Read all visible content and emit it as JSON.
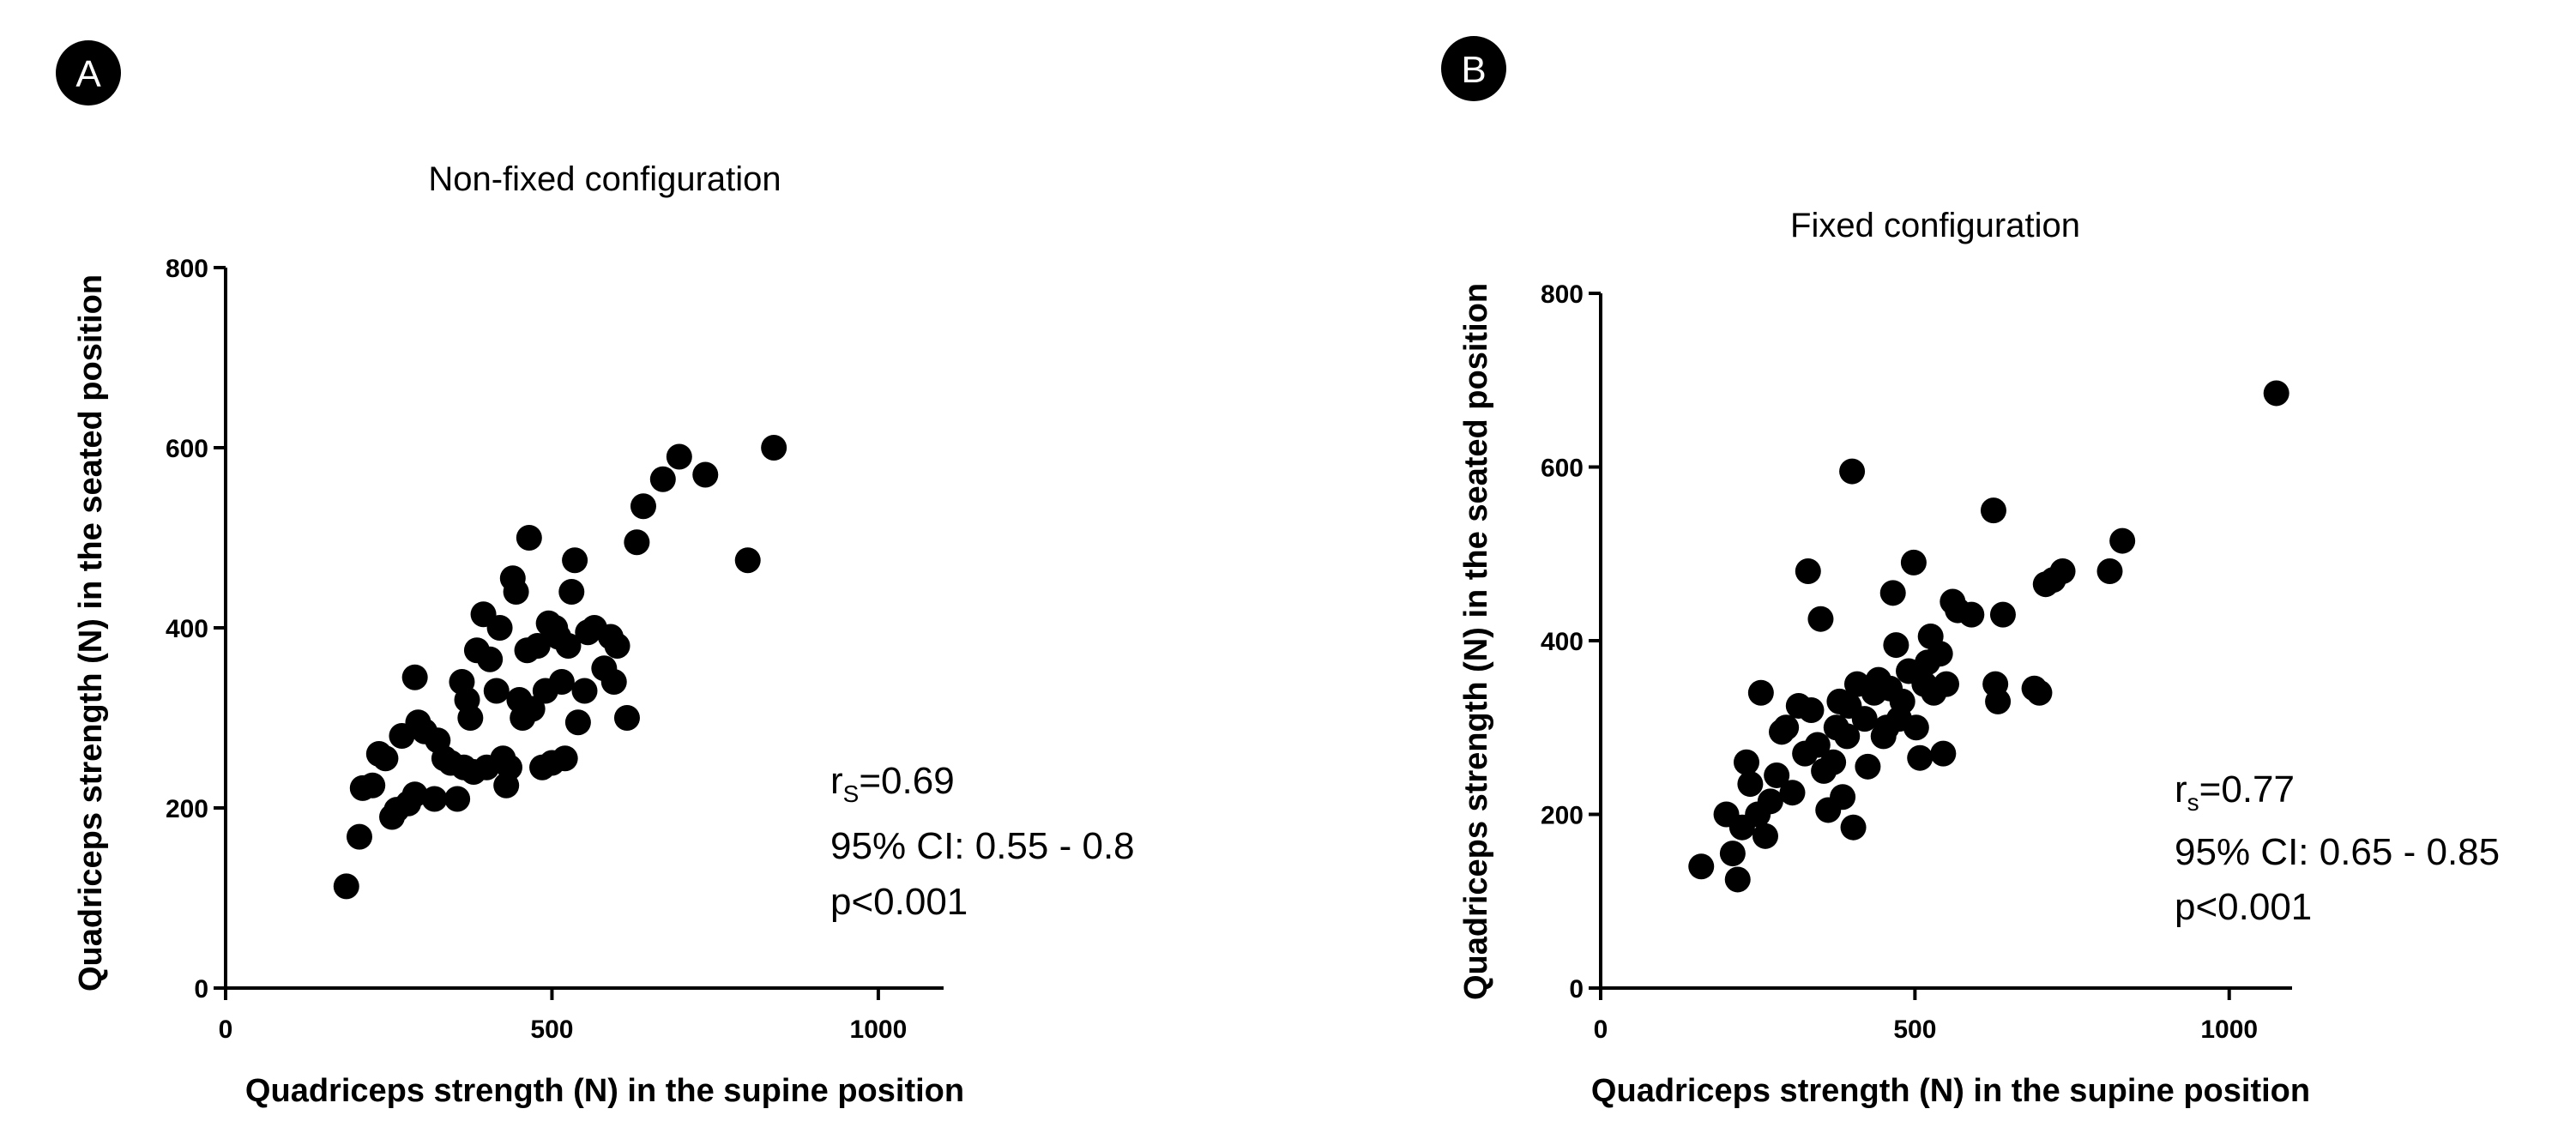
{
  "chart_data": [
    {
      "panel": "A",
      "type": "scatter",
      "title": "Non-fixed configuration",
      "xlabel": "Quadriceps strength (N) in the supine position",
      "ylabel": "Quadriceps strength (N) in the seated position",
      "xlim": [
        0,
        1100
      ],
      "ylim": [
        0,
        800
      ],
      "xticks": [
        0,
        500,
        1000
      ],
      "yticks": [
        0,
        200,
        400,
        600,
        800
      ],
      "stats": {
        "r_prefix": "r",
        "r_sub": "S",
        "r_value": "=0.69",
        "ci": "95% CI: 0.55 - 0.8",
        "p": "p<0.001"
      },
      "points": [
        [
          185,
          113
        ],
        [
          205,
          168
        ],
        [
          210,
          222
        ],
        [
          225,
          225
        ],
        [
          235,
          260
        ],
        [
          245,
          255
        ],
        [
          255,
          190
        ],
        [
          262,
          198
        ],
        [
          270,
          280
        ],
        [
          280,
          205
        ],
        [
          290,
          215
        ],
        [
          290,
          345
        ],
        [
          295,
          295
        ],
        [
          305,
          285
        ],
        [
          320,
          210
        ],
        [
          325,
          275
        ],
        [
          335,
          255
        ],
        [
          345,
          250
        ],
        [
          355,
          210
        ],
        [
          362,
          340
        ],
        [
          365,
          245
        ],
        [
          370,
          320
        ],
        [
          375,
          300
        ],
        [
          380,
          240
        ],
        [
          385,
          375
        ],
        [
          395,
          415
        ],
        [
          400,
          245
        ],
        [
          405,
          365
        ],
        [
          415,
          330
        ],
        [
          420,
          400
        ],
        [
          425,
          255
        ],
        [
          430,
          225
        ],
        [
          435,
          245
        ],
        [
          440,
          455
        ],
        [
          445,
          440
        ],
        [
          450,
          320
        ],
        [
          455,
          300
        ],
        [
          462,
          375
        ],
        [
          465,
          500
        ],
        [
          470,
          310
        ],
        [
          478,
          380
        ],
        [
          485,
          245
        ],
        [
          490,
          330
        ],
        [
          495,
          405
        ],
        [
          500,
          250
        ],
        [
          505,
          400
        ],
        [
          510,
          390
        ],
        [
          515,
          340
        ],
        [
          520,
          255
        ],
        [
          525,
          380
        ],
        [
          530,
          440
        ],
        [
          535,
          475
        ],
        [
          540,
          295
        ],
        [
          550,
          330
        ],
        [
          555,
          395
        ],
        [
          565,
          400
        ],
        [
          580,
          355
        ],
        [
          590,
          390
        ],
        [
          595,
          340
        ],
        [
          600,
          380
        ],
        [
          615,
          300
        ],
        [
          630,
          495
        ],
        [
          640,
          535
        ],
        [
          670,
          565
        ],
        [
          695,
          590
        ],
        [
          735,
          570
        ],
        [
          800,
          475
        ],
        [
          840,
          600
        ]
      ]
    },
    {
      "panel": "B",
      "type": "scatter",
      "title": "Fixed configuration",
      "xlabel": "Quadriceps strength (N) in the supine position",
      "ylabel": "Quadriceps strength (N) in the seated position",
      "xlim": [
        0,
        1100
      ],
      "ylim": [
        0,
        800
      ],
      "xticks": [
        0,
        500,
        1000
      ],
      "yticks": [
        0,
        200,
        400,
        600,
        800
      ],
      "stats": {
        "r_prefix": "r",
        "r_sub": "s",
        "r_value": "=0.77",
        "ci": "95% CI: 0.65 - 0.85",
        "p": "p<0.001"
      },
      "points": [
        [
          160,
          140
        ],
        [
          200,
          200
        ],
        [
          210,
          155
        ],
        [
          218,
          125
        ],
        [
          225,
          185
        ],
        [
          232,
          260
        ],
        [
          238,
          235
        ],
        [
          250,
          200
        ],
        [
          255,
          340
        ],
        [
          262,
          175
        ],
        [
          270,
          215
        ],
        [
          280,
          245
        ],
        [
          288,
          295
        ],
        [
          295,
          300
        ],
        [
          305,
          225
        ],
        [
          315,
          325
        ],
        [
          325,
          270
        ],
        [
          330,
          480
        ],
        [
          335,
          320
        ],
        [
          345,
          280
        ],
        [
          350,
          425
        ],
        [
          355,
          250
        ],
        [
          362,
          205
        ],
        [
          370,
          260
        ],
        [
          375,
          300
        ],
        [
          380,
          330
        ],
        [
          385,
          220
        ],
        [
          392,
          290
        ],
        [
          395,
          325
        ],
        [
          400,
          595
        ],
        [
          402,
          185
        ],
        [
          408,
          350
        ],
        [
          420,
          310
        ],
        [
          425,
          255
        ],
        [
          435,
          340
        ],
        [
          442,
          355
        ],
        [
          450,
          290
        ],
        [
          455,
          300
        ],
        [
          460,
          345
        ],
        [
          465,
          455
        ],
        [
          470,
          395
        ],
        [
          475,
          310
        ],
        [
          480,
          330
        ],
        [
          490,
          365
        ],
        [
          498,
          490
        ],
        [
          502,
          300
        ],
        [
          508,
          265
        ],
        [
          515,
          350
        ],
        [
          520,
          375
        ],
        [
          525,
          405
        ],
        [
          530,
          340
        ],
        [
          540,
          385
        ],
        [
          545,
          270
        ],
        [
          550,
          350
        ],
        [
          560,
          445
        ],
        [
          568,
          435
        ],
        [
          590,
          430
        ],
        [
          625,
          550
        ],
        [
          628,
          350
        ],
        [
          632,
          330
        ],
        [
          640,
          430
        ],
        [
          690,
          345
        ],
        [
          698,
          340
        ],
        [
          708,
          465
        ],
        [
          720,
          470
        ],
        [
          735,
          480
        ],
        [
          810,
          480
        ],
        [
          830,
          515
        ],
        [
          1075,
          685
        ]
      ]
    }
  ]
}
